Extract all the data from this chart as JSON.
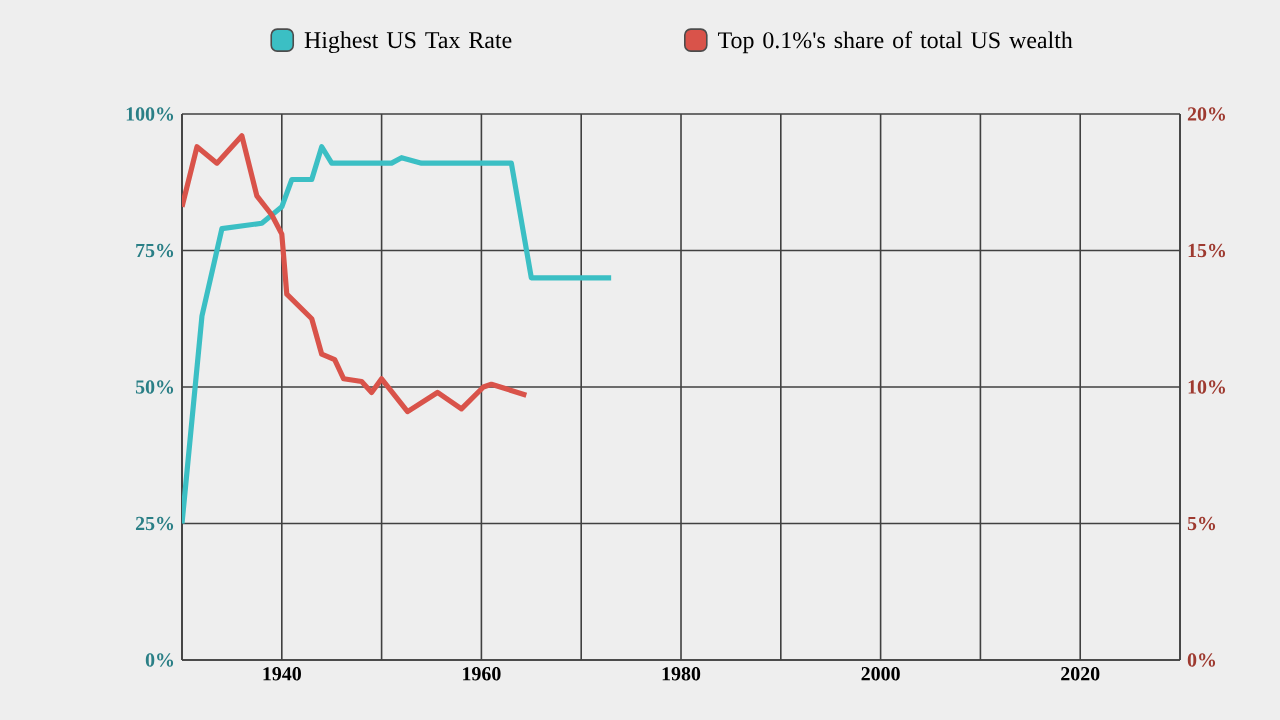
{
  "chart_data": {
    "type": "line",
    "series": [
      {
        "name": "Highest US Tax Rate",
        "color": "#3bbfc4",
        "x": [
          1930,
          1932,
          1934,
          1938,
          1940,
          1941,
          1943,
          1944,
          1945,
          1951,
          1952,
          1954,
          1963,
          1965,
          1973
        ],
        "values": [
          25,
          63,
          79,
          80,
          83,
          88,
          88,
          94,
          91,
          91,
          92,
          91,
          91,
          70,
          70
        ]
      },
      {
        "name": "Top 0.1%'s share of total US wealth",
        "color": "#d9534a",
        "axis": "y2",
        "x": [
          1930,
          1931.5,
          1933.5,
          1935,
          1936,
          1937.5,
          1939,
          1940,
          1940.5,
          1943,
          1944,
          1945.3,
          1946.2,
          1948,
          1949,
          1950,
          1952.6,
          1955.6,
          1958,
          1960.2,
          1961,
          1964.5
        ],
        "values": [
          16.6,
          18.8,
          18.2,
          18.8,
          19.2,
          17.0,
          16.3,
          15.6,
          13.4,
          12.5,
          11.2,
          11.0,
          10.3,
          10.2,
          9.8,
          10.3,
          9.1,
          9.8,
          9.2,
          10.0,
          10.1,
          9.7
        ]
      }
    ],
    "xlim": [
      1930,
      2030
    ],
    "xticks": [
      {
        "value": 1930,
        "label": null
      },
      1940,
      {
        "value": 1950,
        "label": null
      },
      1960,
      {
        "value": 1970,
        "label": null
      },
      1980,
      {
        "value": 1990,
        "label": null
      },
      2000,
      {
        "value": 2010,
        "label": null
      },
      2020,
      {
        "value": 2030,
        "label": null
      }
    ],
    "ylim": [
      0,
      100
    ],
    "yticks": [
      {
        "value": 0,
        "label": "0%"
      },
      {
        "value": 25,
        "label": "25%"
      },
      {
        "value": 50,
        "label": "50%"
      },
      {
        "value": 75,
        "label": "75%"
      },
      {
        "value": 100,
        "label": "100%"
      }
    ],
    "y2lim": [
      0,
      20
    ],
    "y2ticks": [
      {
        "value": 0,
        "label": "0%"
      },
      {
        "value": 5,
        "label": "5%"
      },
      {
        "value": 10,
        "label": "10%"
      },
      {
        "value": 15,
        "label": "15%"
      },
      {
        "value": 20,
        "label": "20%"
      }
    ],
    "grid": true,
    "legend": "top"
  }
}
